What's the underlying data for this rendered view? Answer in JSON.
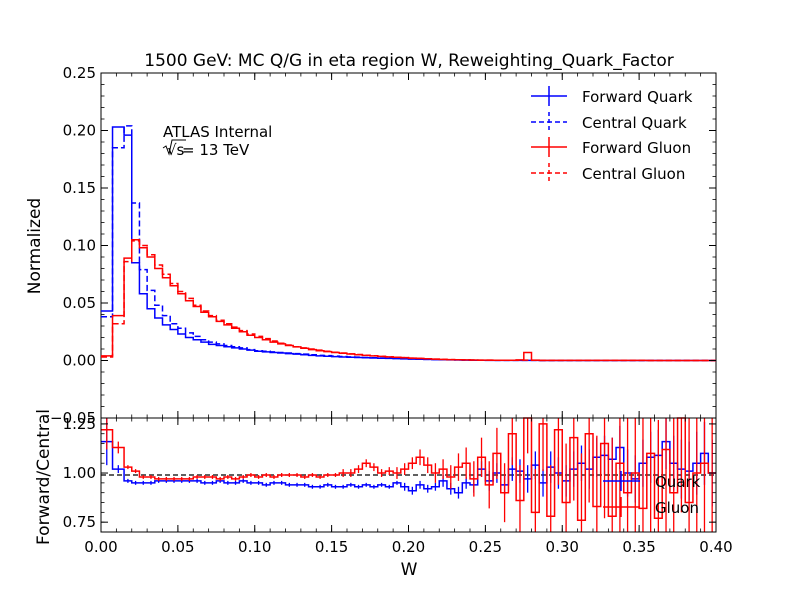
{
  "chart_data": [
    {
      "type": "line",
      "style": "step histogram with error bars",
      "title": "1500 GeV: MC Q/G in eta region W, Reweighting_Quark_Factor",
      "ylabel": "Normalized",
      "xlim": [
        0.0,
        0.4
      ],
      "ylim": [
        -0.05,
        0.25
      ],
      "y_ticks": [
        "−0.05",
        "0.00",
        "0.05",
        "0.10",
        "0.15",
        "0.20",
        "0.25"
      ],
      "y_tick_values": [
        -0.05,
        0.0,
        0.05,
        0.1,
        0.15,
        0.2,
        0.25
      ],
      "annotations": [
        {
          "text": "ATLAS Internal",
          "at": "upper-left"
        },
        {
          "text_root": "√s",
          "text_rest": " = 13 TeV",
          "at": "upper-left"
        }
      ],
      "legend_placement": "top-right",
      "bin_edges": [
        0.0,
        0.0075,
        0.015,
        0.02,
        0.025,
        0.03,
        0.035,
        0.04,
        0.045,
        0.05,
        0.055,
        0.06,
        0.065,
        0.07,
        0.075,
        0.08,
        0.085,
        0.09,
        0.095,
        0.1,
        0.105,
        0.11,
        0.115,
        0.12,
        0.125,
        0.13,
        0.135,
        0.14,
        0.145,
        0.15,
        0.155,
        0.16,
        0.165,
        0.17,
        0.175,
        0.18,
        0.185,
        0.19,
        0.195,
        0.2,
        0.205,
        0.21,
        0.215,
        0.22,
        0.225,
        0.23,
        0.235,
        0.24,
        0.245,
        0.25,
        0.255,
        0.26,
        0.265,
        0.27,
        0.275,
        0.28,
        0.285,
        0.29,
        0.295,
        0.3,
        0.305,
        0.31,
        0.315,
        0.32,
        0.325,
        0.33,
        0.335,
        0.34,
        0.345,
        0.35,
        0.355,
        0.36,
        0.365,
        0.37,
        0.375,
        0.38,
        0.385,
        0.39,
        0.395,
        0.4
      ],
      "series": [
        {
          "name": "Forward Quark",
          "color": "#0000ff",
          "dash": "solid",
          "values": [
            0.043,
            0.203,
            0.196,
            0.085,
            0.058,
            0.045,
            0.037,
            0.031,
            0.027,
            0.023,
            0.02,
            0.018,
            0.016,
            0.014,
            0.013,
            0.012,
            0.011,
            0.01,
            0.009,
            0.008,
            0.0075,
            0.007,
            0.0065,
            0.006,
            0.0055,
            0.005,
            0.0045,
            0.004,
            0.0037,
            0.0034,
            0.0031,
            0.0028,
            0.0026,
            0.0024,
            0.0022,
            0.002,
            0.0018,
            0.0016,
            0.0014,
            0.0012,
            0.0011,
            0.001,
            0.0008,
            0.0006,
            0.0005,
            0.0004,
            0.0003,
            0.0002,
            0.0002,
            0.0001,
            0.0001,
            0.0001,
            0.0001,
            0.0001,
            0.0001,
            0.0001,
            0.0,
            0.0,
            0.0,
            0.0,
            0.0,
            0.0,
            0.0,
            0.0,
            0.0,
            0.0,
            0.0,
            0.0,
            0.0,
            0.0,
            0.0,
            0.0,
            0.0,
            0.0,
            0.0,
            0.0,
            0.0,
            0.0,
            0.0
          ]
        },
        {
          "name": "Central Quark",
          "color": "#0000ff",
          "dash": "dashed",
          "values": [
            0.038,
            0.185,
            0.204,
            0.137,
            0.079,
            0.061,
            0.048,
            0.039,
            0.032,
            0.028,
            0.024,
            0.021,
            0.018,
            0.016,
            0.0145,
            0.013,
            0.012,
            0.011,
            0.0095,
            0.0085,
            0.008,
            0.0075,
            0.007,
            0.0065,
            0.006,
            0.0055,
            0.005,
            0.0045,
            0.0042,
            0.0038,
            0.0035,
            0.0032,
            0.0029,
            0.0026,
            0.0024,
            0.0022,
            0.002,
            0.0018,
            0.0016,
            0.0014,
            0.0012,
            0.001,
            0.0009,
            0.0007,
            0.0006,
            0.0005,
            0.0004,
            0.0003,
            0.0002,
            0.0002,
            0.0001,
            0.0001,
            0.0001,
            0.0001,
            0.0001,
            0.0001,
            0.0,
            0.0,
            0.0,
            0.0,
            0.0,
            0.0,
            0.0,
            0.0,
            0.0,
            0.0,
            0.0,
            0.0,
            0.0,
            0.0,
            0.0,
            0.0,
            0.0,
            0.0,
            0.0,
            0.0,
            0.0,
            0.0,
            0.0
          ]
        },
        {
          "name": "Forward Gluon",
          "color": "#ff0000",
          "dash": "solid",
          "values": [
            0.004,
            0.039,
            0.089,
            0.105,
            0.098,
            0.09,
            0.08,
            0.072,
            0.065,
            0.058,
            0.052,
            0.047,
            0.042,
            0.038,
            0.034,
            0.031,
            0.028,
            0.025,
            0.022,
            0.02,
            0.018,
            0.016,
            0.0145,
            0.013,
            0.0118,
            0.0106,
            0.0095,
            0.0085,
            0.0077,
            0.007,
            0.0063,
            0.0056,
            0.005,
            0.0045,
            0.004,
            0.0036,
            0.0032,
            0.0028,
            0.0025,
            0.0021,
            0.0018,
            0.0015,
            0.0012,
            0.001,
            0.0008,
            0.0006,
            0.0005,
            0.0004,
            0.0003,
            0.0003,
            0.0002,
            0.0002,
            0.0002,
            0.0005,
            0.007,
            0.0003,
            0.0001,
            0.0001,
            0.0001,
            0.0001,
            0.0001,
            0.0001,
            0.0001,
            0.0001,
            0.0001,
            0.0001,
            0.0001,
            0.0001,
            0.0001,
            0.0001,
            0.0,
            0.0,
            0.0,
            0.0,
            0.0,
            0.0,
            0.0,
            0.0,
            0.0
          ]
        },
        {
          "name": "Central Gluon",
          "color": "#ff0000",
          "dash": "dashed",
          "values": [
            0.003,
            0.032,
            0.086,
            0.104,
            0.1,
            0.092,
            0.083,
            0.075,
            0.067,
            0.06,
            0.054,
            0.048,
            0.043,
            0.039,
            0.035,
            0.032,
            0.029,
            0.026,
            0.023,
            0.021,
            0.019,
            0.017,
            0.015,
            0.0135,
            0.012,
            0.011,
            0.01,
            0.009,
            0.008,
            0.0072,
            0.0065,
            0.0058,
            0.0052,
            0.0046,
            0.0041,
            0.0036,
            0.0032,
            0.0028,
            0.0025,
            0.0021,
            0.0018,
            0.0015,
            0.0012,
            0.001,
            0.0008,
            0.0006,
            0.0005,
            0.0004,
            0.0003,
            0.0003,
            0.0002,
            0.0002,
            0.0002,
            0.0002,
            0.0003,
            0.0002,
            0.0001,
            0.0001,
            0.0001,
            0.0001,
            0.0001,
            0.0001,
            0.0001,
            0.0001,
            0.0001,
            0.0001,
            0.0001,
            0.0001,
            0.0001,
            0.0001,
            0.0,
            0.0,
            0.0,
            0.0,
            0.0,
            0.0,
            0.0,
            0.0,
            0.0
          ]
        }
      ]
    },
    {
      "type": "line",
      "style": "step ratio with error bars",
      "xlabel": "W",
      "ylabel": "Forward/Central",
      "xlim": [
        0.0,
        0.4
      ],
      "ylim": [
        0.7,
        1.28
      ],
      "x_ticks": [
        "0.00",
        "0.05",
        "0.10",
        "0.15",
        "0.20",
        "0.25",
        "0.30",
        "0.35",
        "0.40"
      ],
      "x_tick_values": [
        0.0,
        0.05,
        0.1,
        0.15,
        0.2,
        0.25,
        0.3,
        0.35,
        0.4
      ],
      "y_ticks": [
        "0.75",
        "1.00",
        "1.25"
      ],
      "y_tick_values": [
        0.75,
        1.0,
        1.25
      ],
      "reference_line": 1.0,
      "legend_placement": "lower-right",
      "series": [
        {
          "name": "Quark",
          "color": "#0000ff",
          "values": [
            1.16,
            1.02,
            0.96,
            0.95,
            0.95,
            0.95,
            0.96,
            0.96,
            0.96,
            0.96,
            0.96,
            0.96,
            0.95,
            0.95,
            0.96,
            0.95,
            0.95,
            0.96,
            0.95,
            0.95,
            0.94,
            0.95,
            0.95,
            0.94,
            0.94,
            0.94,
            0.93,
            0.93,
            0.94,
            0.93,
            0.93,
            0.94,
            0.93,
            0.94,
            0.93,
            0.94,
            0.93,
            0.95,
            0.93,
            0.91,
            0.94,
            0.92,
            0.93,
            0.96,
            0.92,
            0.9,
            0.95,
            0.94,
            1.02,
            0.96,
            1.0,
            0.94,
            1.02,
            1.01,
            0.97,
            1.04,
            0.95,
            1.03,
            1.0,
            0.96,
            1.02,
            1.05,
            1.02,
            1.08,
            1.09,
            1.07,
            1.13,
            1.0,
            0.97,
            1.05,
            1.08,
            1.09,
            1.16,
            1.05,
            1.02,
            1.01,
            1.05,
            1.1,
            1.0
          ],
          "errors": [
            0.12,
            0.02,
            0.01,
            0.01,
            0.01,
            0.01,
            0.01,
            0.01,
            0.01,
            0.01,
            0.01,
            0.01,
            0.01,
            0.01,
            0.01,
            0.01,
            0.01,
            0.01,
            0.01,
            0.01,
            0.01,
            0.01,
            0.01,
            0.01,
            0.01,
            0.01,
            0.01,
            0.01,
            0.01,
            0.01,
            0.01,
            0.01,
            0.01,
            0.01,
            0.01,
            0.01,
            0.01,
            0.01,
            0.02,
            0.02,
            0.02,
            0.02,
            0.02,
            0.03,
            0.03,
            0.03,
            0.03,
            0.04,
            0.04,
            0.05,
            0.05,
            0.05,
            0.06,
            0.06,
            0.07,
            0.07,
            0.07,
            0.08,
            0.08,
            0.08,
            0.09,
            0.09,
            0.1,
            0.1,
            0.1,
            0.11,
            0.11,
            0.12,
            0.12,
            0.12,
            0.13,
            0.13,
            0.14,
            0.14,
            0.15,
            0.15,
            0.16,
            0.16,
            0.17
          ]
        },
        {
          "name": "Gluon",
          "color": "#ff0000",
          "values": [
            1.22,
            1.13,
            1.03,
            1.01,
            0.98,
            0.98,
            0.97,
            0.97,
            0.97,
            0.97,
            0.97,
            0.98,
            0.98,
            0.98,
            0.97,
            0.98,
            0.97,
            0.98,
            0.99,
            0.98,
            0.99,
            0.98,
            0.99,
            0.99,
            0.99,
            0.98,
            0.99,
            0.98,
            0.99,
            0.99,
            1.0,
            1.0,
            1.02,
            1.05,
            1.03,
            1.0,
            1.01,
            1.0,
            1.02,
            1.05,
            1.08,
            1.04,
            1.0,
            1.02,
            0.98,
            1.03,
            1.05,
            0.97,
            1.08,
            0.94,
            1.1,
            0.9,
            1.2,
            0.86,
            1.3,
            0.8,
            1.25,
            0.78,
            1.22,
            0.85,
            1.18,
            0.76,
            1.2,
            0.83,
            1.15,
            0.78,
            1.05,
            0.9,
            1.0,
            0.82,
            1.1,
            0.77,
            1.12,
            0.9,
            1.3,
            0.85,
            1.0,
            1.05,
            1.0
          ],
          "errors": [
            0.1,
            0.03,
            0.01,
            0.01,
            0.01,
            0.01,
            0.01,
            0.01,
            0.01,
            0.01,
            0.01,
            0.01,
            0.01,
            0.01,
            0.01,
            0.01,
            0.01,
            0.01,
            0.01,
            0.01,
            0.01,
            0.01,
            0.01,
            0.01,
            0.01,
            0.01,
            0.01,
            0.01,
            0.01,
            0.01,
            0.02,
            0.02,
            0.02,
            0.02,
            0.02,
            0.02,
            0.02,
            0.03,
            0.03,
            0.03,
            0.04,
            0.04,
            0.05,
            0.05,
            0.06,
            0.07,
            0.08,
            0.09,
            0.1,
            0.12,
            0.13,
            0.15,
            0.16,
            0.18,
            0.2,
            0.22,
            0.24,
            0.26,
            0.28,
            0.3,
            0.32,
            0.34,
            0.35,
            0.36,
            0.38,
            0.4,
            0.42,
            0.45,
            0.48,
            0.5,
            0.5,
            0.5,
            0.5,
            0.5,
            0.5,
            0.5,
            0.5,
            0.5,
            0.5
          ]
        }
      ]
    }
  ]
}
